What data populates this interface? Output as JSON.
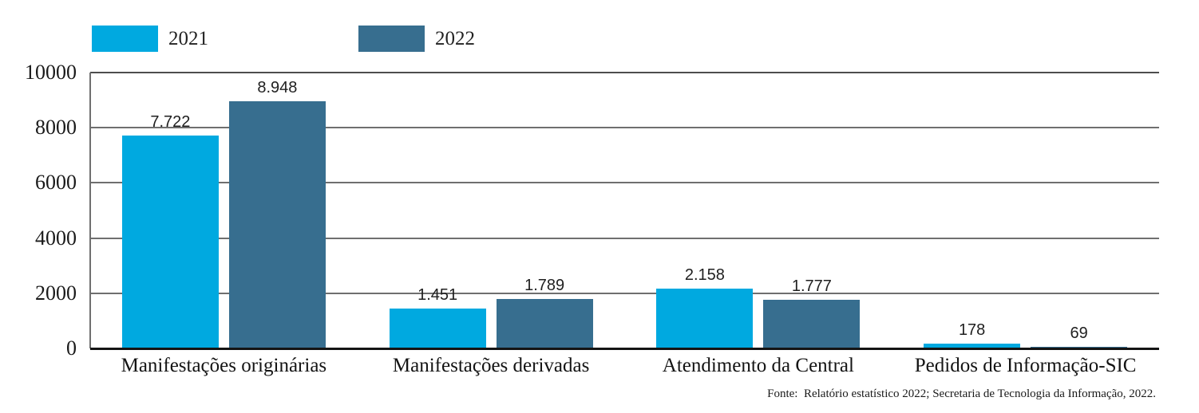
{
  "chart_data": {
    "type": "bar",
    "categories": [
      "Manifestações originárias",
      "Manifestações derivadas",
      "Atendimento da Central",
      "Pedidos de Informação-SIC"
    ],
    "series": [
      {
        "name": "2021",
        "color": "#00a9e0",
        "values": [
          7722,
          1451,
          2158,
          178
        ],
        "value_labels": [
          "7.722",
          "1.451",
          "2.158",
          "178"
        ]
      },
      {
        "name": "2022",
        "color": "#376e8f",
        "values": [
          8948,
          1789,
          1777,
          69
        ],
        "value_labels": [
          "8.948",
          "1.789",
          "1.777",
          "69"
        ]
      }
    ],
    "title": "",
    "xlabel": "",
    "ylabel": "",
    "ylim": [
      0,
      10000
    ],
    "yticks": [
      0,
      2000,
      4000,
      6000,
      8000,
      10000
    ],
    "grid": true,
    "legend_position": "top-left"
  },
  "legend": [
    {
      "label": "2021",
      "color": "#00a9e0"
    },
    {
      "label": "2022",
      "color": "#376e8f"
    }
  ],
  "footer": {
    "source": "Fonte:  Relatório estatístico 2022; Secretaria de Tecnologia da Informação, 2022."
  }
}
